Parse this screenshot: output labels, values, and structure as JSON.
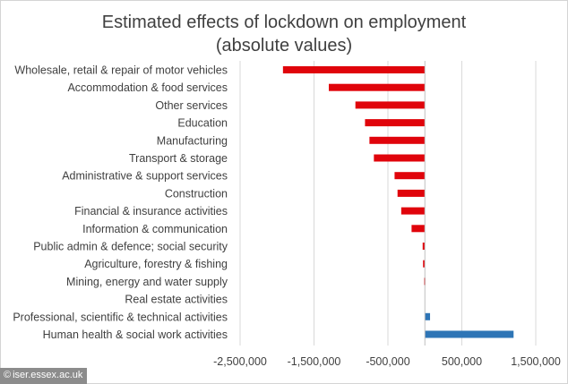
{
  "watermark": {
    "symbol": "©",
    "text": "iser.essex.ac.uk"
  },
  "chart_data": {
    "type": "bar",
    "orientation": "horizontal",
    "title": "Estimated effects of lockdown on employment",
    "subtitle": "(absolute values)",
    "xlabel": "",
    "ylabel": "",
    "xlim": [
      -2500000,
      1500000
    ],
    "xticks": [
      -2500000,
      -1500000,
      -500000,
      500000,
      1500000
    ],
    "xtick_labels": [
      "-2,500,000",
      "-1,500,000",
      "-500,000",
      "500,000",
      "1,500,000"
    ],
    "grid": "vertical gridlines",
    "legend": "none",
    "colors": {
      "negative": "#e0040b",
      "positive": "#2e75b6",
      "grid": "#d9d9d9",
      "text": "#404040"
    },
    "categories": [
      "Wholesale, retail & repair of motor vehicles",
      "Accommodation & food services",
      "Other services",
      "Education",
      "Manufacturing",
      "Transport & storage",
      "Administrative & support services",
      "Construction",
      "Financial & insurance activities",
      "Information & communication",
      "Public admin & defence; social security",
      "Agriculture, forestry & fishing",
      "Mining, energy and water supply",
      "Real estate activities",
      "Professional, scientific & technical activities",
      "Human health & social work activities"
    ],
    "values": [
      -1920000,
      -1300000,
      -940000,
      -810000,
      -750000,
      -690000,
      -410000,
      -370000,
      -320000,
      -180000,
      -30000,
      -25000,
      -10000,
      0,
      70000,
      1200000
    ]
  }
}
